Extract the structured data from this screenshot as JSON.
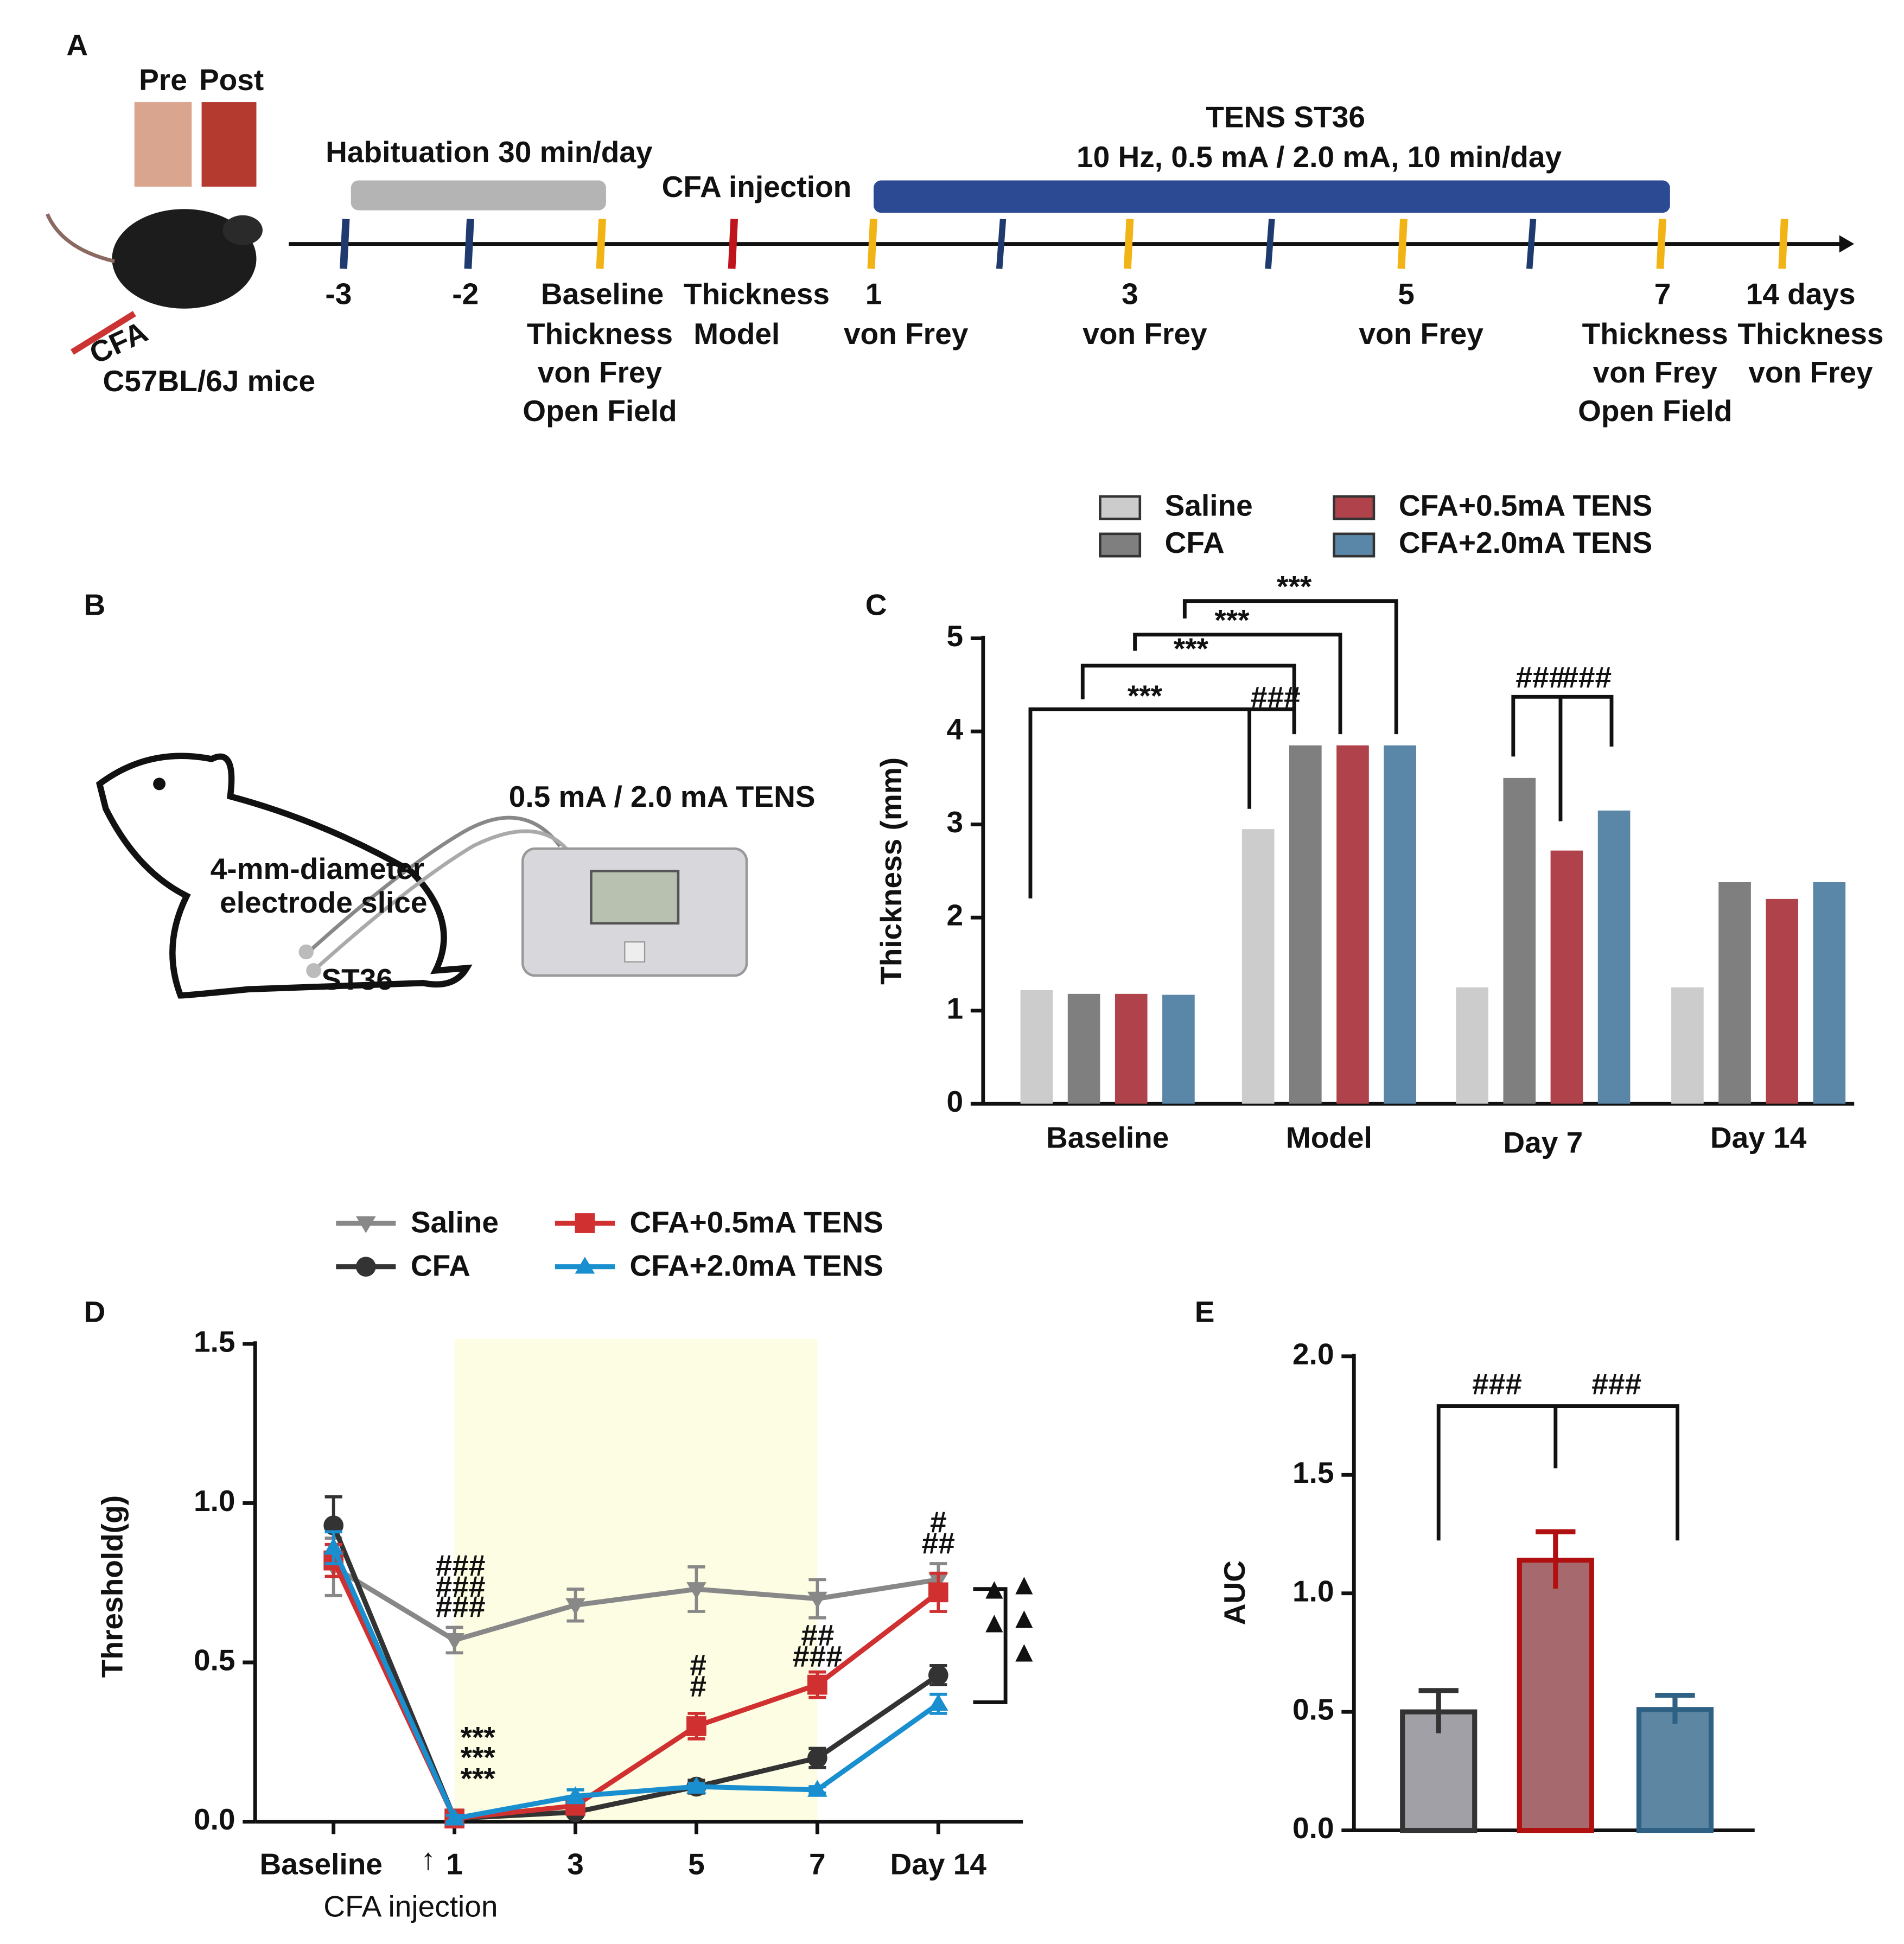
{
  "timeline": {
    "letter": "A",
    "photo_labels": [
      "Pre",
      "Post"
    ],
    "habituation": "Habituation 30 min/day",
    "injection": "CFA injection",
    "tens": [
      "TENS ST36",
      "10 Hz, 0.5 mA / 2.0 mA, 10 min/day"
    ],
    "syringe": "CFA",
    "mouse": "C57BL/6J mice",
    "points": [
      {
        "label": "-3"
      },
      {
        "label": "-2"
      },
      {
        "label": "Baseline",
        "notes": [
          "Thickness",
          "von Frey",
          "Open Field"
        ]
      },
      {
        "label": "Thickness",
        "notes": [
          "Model"
        ]
      },
      {
        "label": "1",
        "notes": [
          "von Frey"
        ]
      },
      {
        "label": "3",
        "notes": [
          "von Frey"
        ]
      },
      {
        "label": "5",
        "notes": [
          "von Frey"
        ]
      },
      {
        "label": "7",
        "notes": [
          "Thickness",
          "von Frey",
          "Open Field"
        ]
      },
      {
        "label": "14 days",
        "notes": [
          "Thickness",
          "von Frey"
        ]
      }
    ]
  },
  "setup": {
    "letter": "B",
    "stimulus": "0.5 mA / 2.0 mA TENS",
    "electrode": [
      "4-mm-diameter",
      "electrode slice"
    ],
    "acupoint": "ST36"
  },
  "chart_data": [
    {
      "type": "bar",
      "panel": "C",
      "ylabel": "Thickness (mm)",
      "categories": [
        "Baseline",
        "Model",
        "Day 7",
        "Day 14"
      ],
      "series": [
        {
          "name": "Saline",
          "color": "#cccccc",
          "values": [
            1.22,
            2.95,
            1.25,
            1.25
          ]
        },
        {
          "name": "CFA",
          "color": "#7f7f7f",
          "values": [
            1.18,
            3.85,
            3.5,
            2.38
          ]
        },
        {
          "name": "CFA+0.5mA TENS",
          "color": "#b0424c",
          "values": [
            1.18,
            3.85,
            2.72,
            2.2
          ]
        },
        {
          "name": "CFA+2.0mA TENS",
          "color": "#5a86a8",
          "values": [
            1.17,
            3.85,
            3.15,
            2.38
          ]
        }
      ],
      "ylim": [
        0,
        5
      ],
      "yticks": [
        0,
        1,
        2,
        3,
        4,
        5
      ],
      "annotations": [
        "***",
        "***",
        "***",
        "***",
        "###",
        "###",
        "###"
      ]
    },
    {
      "type": "line",
      "panel": "D",
      "ylabel": "Threshold(g)",
      "categories": [
        "Baseline",
        "1",
        "3",
        "5",
        "7",
        "Day 14"
      ],
      "series": [
        {
          "name": "Saline",
          "color": "#888888",
          "marker": "triangle-down",
          "values": [
            0.8,
            0.57,
            0.68,
            0.73,
            0.7,
            0.76
          ],
          "errors": [
            0.09,
            0.04,
            0.05,
            0.07,
            0.06,
            0.05
          ]
        },
        {
          "name": "CFA",
          "color": "#333333",
          "marker": "circle",
          "values": [
            0.93,
            0.01,
            0.03,
            0.11,
            0.2,
            0.46
          ],
          "errors": [
            0.09,
            0.01,
            0.01,
            0.02,
            0.03,
            0.03
          ]
        },
        {
          "name": "CFA+0.5mA TENS",
          "color": "#d03030",
          "marker": "square",
          "values": [
            0.82,
            0.01,
            0.05,
            0.3,
            0.43,
            0.72
          ],
          "errors": [
            0.05,
            0.01,
            0.02,
            0.04,
            0.04,
            0.06
          ]
        },
        {
          "name": "CFA+2.0mA TENS",
          "color": "#1a8fd0",
          "marker": "triangle-up",
          "values": [
            0.86,
            0.01,
            0.08,
            0.11,
            0.1,
            0.37
          ],
          "errors": [
            0.05,
            0.01,
            0.02,
            0.01,
            0.01,
            0.03
          ]
        }
      ],
      "ylim": [
        0,
        1.5
      ],
      "yticks": [
        {
          "value": 0,
          "label": "0.0"
        },
        {
          "value": 0.5,
          "label": "0.5"
        },
        {
          "value": 1,
          "label": "1.0"
        },
        {
          "value": 1.5,
          "label": "1.5"
        }
      ],
      "injection_arrow": "↑",
      "injection_label": "CFA injection",
      "annotations": [
        {
          "text": "###",
          "color": "#b01010"
        },
        {
          "text": "###",
          "color": "#222222"
        },
        {
          "text": "###",
          "color": "#5a8ac0"
        },
        {
          "text": "***",
          "color": "#222222"
        },
        {
          "text": "***",
          "color": "#b01010"
        },
        {
          "text": "***",
          "color": "#5a8ac0"
        },
        {
          "text": "#",
          "color": "#222222"
        },
        {
          "text": "#",
          "color": "#5a8ac0"
        },
        {
          "text": "##",
          "color": "#222222"
        },
        {
          "text": "###",
          "color": "#5a8ac0"
        },
        {
          "text": "#",
          "color": "#222222"
        },
        {
          "text": "##",
          "color": "#5a8ac0"
        },
        {
          "text": "▲▲",
          "color": "#111111"
        },
        {
          "text": "▲▲▲",
          "color": "#111111"
        }
      ]
    },
    {
      "type": "bar",
      "panel": "E",
      "ylabel": "AUC",
      "categories": [
        null,
        null,
        null
      ],
      "values": [
        0.5,
        1.14,
        0.51
      ],
      "errors": [
        0.09,
        0.12,
        0.06
      ],
      "colors": [
        "#a0a0a6",
        "#a66a6e",
        "#5d86a2"
      ],
      "edge_colors": [
        "#333333",
        "#b01010",
        "#2f6185"
      ],
      "ylim": [
        0,
        2
      ],
      "yticks": [
        {
          "value": 0,
          "label": "0.0"
        },
        {
          "value": 0.5,
          "label": "0.5"
        },
        {
          "value": 1,
          "label": "1.0"
        },
        {
          "value": 1.5,
          "label": "1.5"
        },
        {
          "value": 2,
          "label": "2.0"
        }
      ],
      "annotations": [
        "###",
        "###"
      ]
    }
  ]
}
